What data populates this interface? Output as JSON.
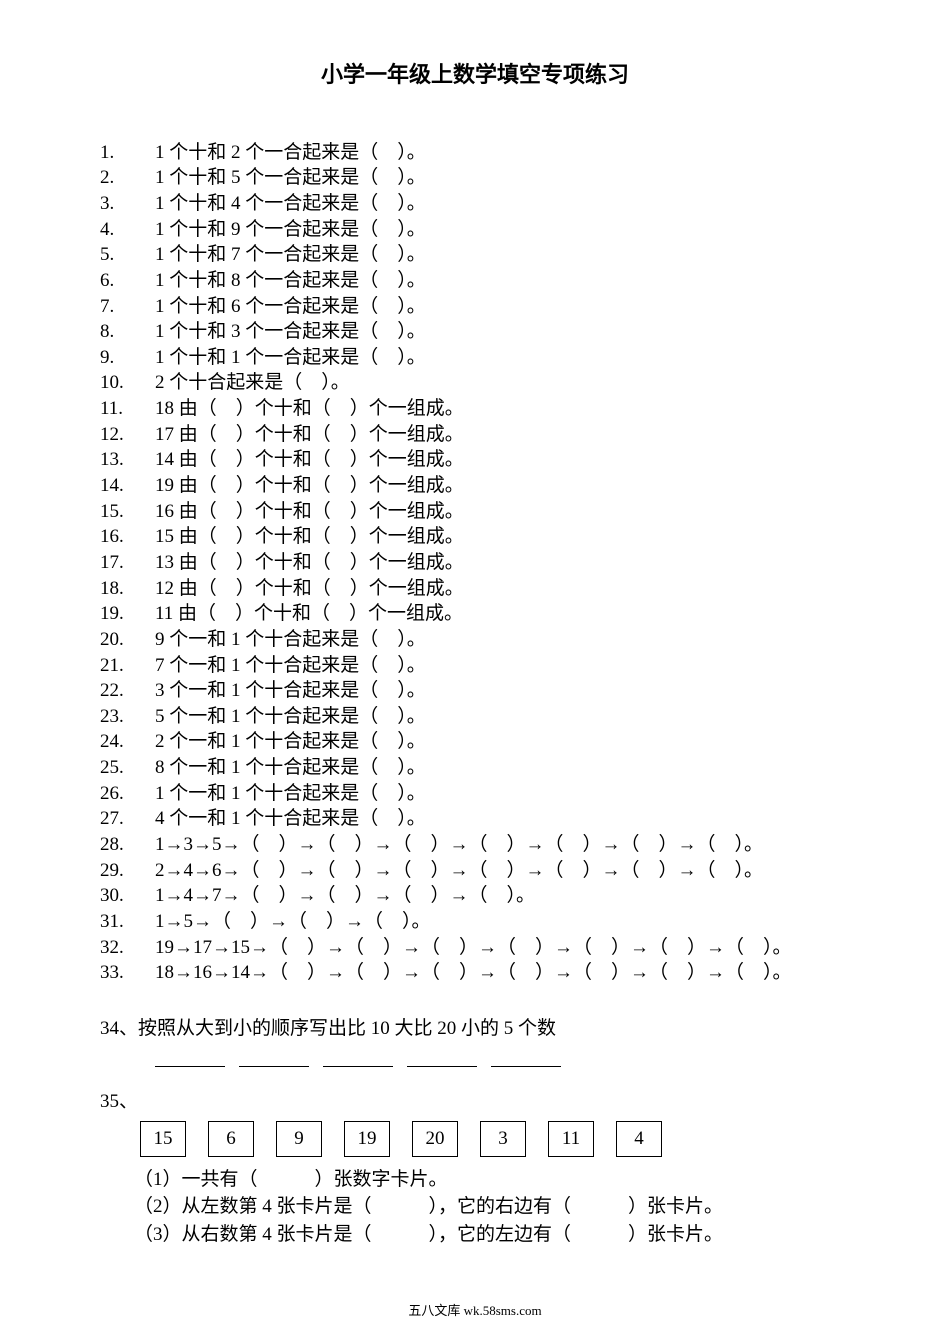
{
  "title": "小学一年级上数学填空专项练习",
  "text_color": "#000000",
  "background_color": "#ffffff",
  "font_family": "SimSun",
  "body_fontsize": 19,
  "title_fontsize": 22,
  "questions": [
    {
      "n": "1.",
      "t": " 1 个十和 2 个一合起来是（　）。"
    },
    {
      "n": "2.",
      "t": " 1 个十和 5 个一合起来是（　）。"
    },
    {
      "n": "3.",
      "t": " 1 个十和 4 个一合起来是（　）。"
    },
    {
      "n": "4.",
      "t": " 1 个十和 9 个一合起来是（　）。"
    },
    {
      "n": "5.",
      "t": " 1 个十和 7 个一合起来是（　）。"
    },
    {
      "n": "6.",
      "t": " 1 个十和 8 个一合起来是（　）。"
    },
    {
      "n": "7.",
      "t": " 1 个十和 6 个一合起来是（　）。"
    },
    {
      "n": "8.",
      "t": " 1 个十和 3 个一合起来是（　）。"
    },
    {
      "n": "9.",
      "t": " 1 个十和 1 个一合起来是（　）。"
    },
    {
      "n": "10.",
      "t": " 2 个十合起来是（　）。"
    },
    {
      "n": "11.",
      "t": "18 由（　）个十和（　）个一组成。"
    },
    {
      "n": "12.",
      "t": "17 由（　）个十和（　）个一组成。"
    },
    {
      "n": "13.",
      "t": "14 由（　）个十和（　）个一组成。"
    },
    {
      "n": "14.",
      "t": "19 由（　）个十和（　）个一组成。"
    },
    {
      "n": "15.",
      "t": "16 由（　）个十和（　）个一组成。"
    },
    {
      "n": "16.",
      "t": "15 由（　）个十和（　）个一组成。"
    },
    {
      "n": "17.",
      "t": "13 由（　）个十和（　）个一组成。"
    },
    {
      "n": "18.",
      "t": "12 由（　）个十和（　）个一组成。"
    },
    {
      "n": "19.",
      "t": "11 由（　）个十和（　）个一组成。"
    },
    {
      "n": "20.",
      "t": "9 个一和 1 个十合起来是（　）。"
    },
    {
      "n": "21.",
      "t": "7 个一和 1 个十合起来是（　）。"
    },
    {
      "n": "22.",
      "t": "3 个一和 1 个十合起来是（　）。"
    },
    {
      "n": "23.",
      "t": "5 个一和 1 个十合起来是（　）。"
    },
    {
      "n": "24.",
      "t": "2 个一和 1 个十合起来是（　）。"
    },
    {
      "n": "25.",
      "t": "8 个一和 1 个十合起来是（　）。"
    },
    {
      "n": "26.",
      "t": "1 个一和 1 个十合起来是（　）。"
    },
    {
      "n": "27.",
      "t": "4 个一和 1 个十合起来是（　）。"
    },
    {
      "n": "28.",
      "t": "1→3→5→（　）→（　）→（　）→（　）→（　）→（　）→（　）。"
    },
    {
      "n": "29.",
      "t": "2→4→6→（　）→（　）→（　）→（　）→（　）→（　）→（　）。"
    },
    {
      "n": "30.",
      "t": "1→4→7→（　）→（　）→（　）→（　）。"
    },
    {
      "n": "31.",
      "t": "1→5→（　）→（　）→（　）。"
    },
    {
      "n": "32.",
      "t": "19→17→15→（　）→（　）→（　）→（　）→（　）→（　）→（　）。"
    },
    {
      "n": "33.",
      "t": "18→16→14→（　）→（　）→（　）→（　）→（　）→（　）→（　）。"
    }
  ],
  "q34": {
    "label": "34、",
    "text": "按照从大到小的顺序写出比 10 大比 20 小的 5 个数",
    "blank_count": 5
  },
  "q35": {
    "label": "35、",
    "cards": [
      "15",
      "6",
      "9",
      "19",
      "20",
      "3",
      "11",
      "4"
    ],
    "card_border_color": "#000000",
    "sub1": "（1）一共有（　　　）张数字卡片。",
    "sub2": "（2）从左数第 4 张卡片是（　　　），它的右边有（　　　）张卡片。",
    "sub3": "（3）从右数第 4 张卡片是（　　　），它的左边有（　　　）张卡片。"
  },
  "footer": "五八文库 wk.58sms.com"
}
